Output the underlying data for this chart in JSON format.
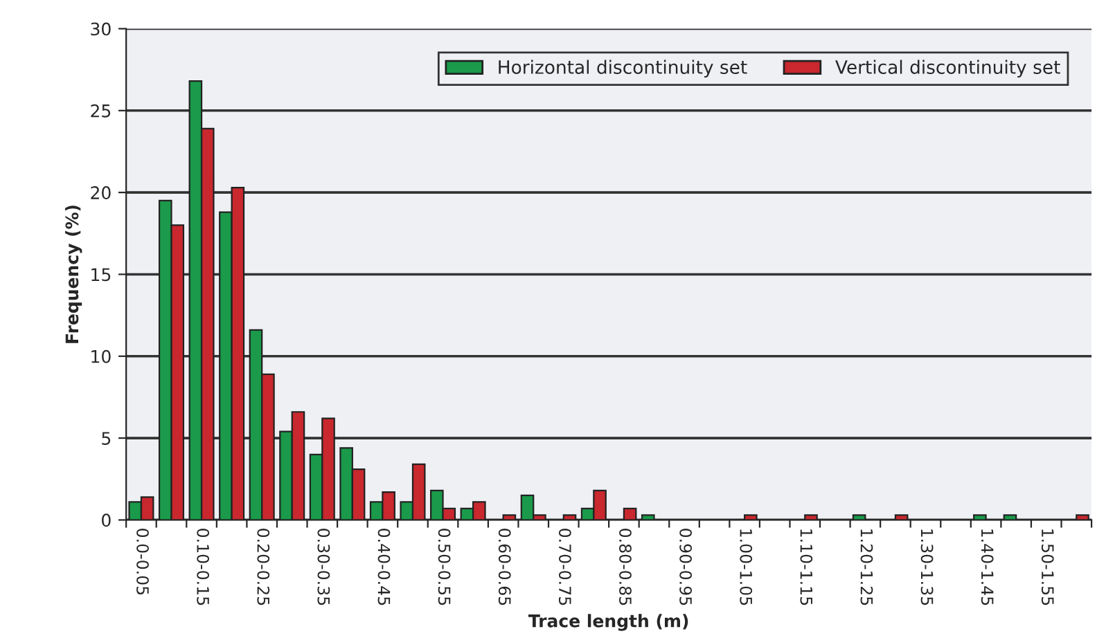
{
  "chart_data": {
    "type": "bar",
    "xlabel": "Trace length (m)",
    "ylabel": "Frequency (%)",
    "categories": [
      "0.0-0.05",
      null,
      "0.10-0.15",
      null,
      "0.20-0.25",
      null,
      "0.30-0.35",
      null,
      "0.40-0.45",
      null,
      "0.50-0.55",
      null,
      "0.60-0.65",
      null,
      "0.70-0.75",
      null,
      "0.80-0.85",
      null,
      "0.90-0.95",
      null,
      "1.00-1.05",
      null,
      "1.10-1.15",
      null,
      "1.20-1.25",
      null,
      "1.30-1.35",
      null,
      "1.40-1.45",
      null,
      "1.50-1.55",
      null
    ],
    "series": [
      {
        "name": "Horizontal discontinuity set",
        "color": "#1a9a4a",
        "values": [
          1.1,
          19.5,
          26.8,
          18.8,
          11.6,
          5.4,
          4.0,
          4.4,
          1.1,
          1.1,
          1.8,
          0.7,
          null,
          1.5,
          null,
          0.7,
          null,
          0.3,
          null,
          null,
          null,
          null,
          null,
          null,
          0.3,
          null,
          null,
          null,
          0.3,
          0.3,
          null,
          null
        ]
      },
      {
        "name": "Vertical discontinuity set",
        "color": "#c8282e",
        "values": [
          1.4,
          18.0,
          23.9,
          20.3,
          8.9,
          6.6,
          6.2,
          3.1,
          1.7,
          3.4,
          0.7,
          1.1,
          0.3,
          0.3,
          0.3,
          1.8,
          0.7,
          null,
          null,
          null,
          0.3,
          null,
          0.3,
          null,
          null,
          0.3,
          null,
          null,
          null,
          null,
          null,
          0.3
        ]
      }
    ],
    "ylim": [
      0,
      30
    ],
    "yticks": [
      0,
      5,
      10,
      15,
      20,
      25,
      30
    ],
    "grid": "y",
    "legend": "top right"
  }
}
